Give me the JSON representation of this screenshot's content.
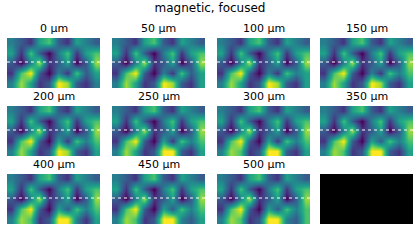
{
  "title": "magnetic, focused",
  "chart_data": [
    {
      "type": "heatmap",
      "title": "0 μm",
      "tick_labels": false,
      "z": [
        [
          0.4,
          0.3,
          0.2,
          0.5,
          0.6,
          0.3,
          0.2,
          0.5,
          0.4,
          0.3
        ],
        [
          0.5,
          0.2,
          0.6,
          0.3,
          0.1,
          0.4,
          0.6,
          0.2,
          0.5,
          0.6
        ],
        [
          0.3,
          0.1,
          0.4,
          0.7,
          0.2,
          0.3,
          0.5,
          0.1,
          0.3,
          0.7
        ],
        [
          0.2,
          0.6,
          0.8,
          0.3,
          0.1,
          0.4,
          0.2,
          0.6,
          0.3,
          0.5
        ],
        [
          0.4,
          0.7,
          0.5,
          0.2,
          0.3,
          0.8,
          0.7,
          0.3,
          0.2,
          0.4
        ]
      ]
    },
    {
      "type": "heatmap",
      "title": "50 μm",
      "tick_labels": false,
      "z": [
        [
          0.4,
          0.3,
          0.2,
          0.5,
          0.6,
          0.3,
          0.2,
          0.5,
          0.4,
          0.3
        ],
        [
          0.5,
          0.2,
          0.6,
          0.3,
          0.1,
          0.4,
          0.6,
          0.2,
          0.5,
          0.6
        ],
        [
          0.3,
          0.1,
          0.4,
          0.7,
          0.2,
          0.3,
          0.5,
          0.1,
          0.3,
          0.7
        ],
        [
          0.2,
          0.6,
          0.8,
          0.3,
          0.1,
          0.4,
          0.2,
          0.6,
          0.3,
          0.5
        ],
        [
          0.4,
          0.7,
          0.5,
          0.2,
          0.3,
          0.8,
          0.7,
          0.3,
          0.2,
          0.5
        ]
      ]
    },
    {
      "type": "heatmap",
      "title": "100 μm",
      "tick_labels": false,
      "z": [
        [
          0.4,
          0.3,
          0.2,
          0.5,
          0.6,
          0.3,
          0.2,
          0.5,
          0.4,
          0.3
        ],
        [
          0.5,
          0.2,
          0.6,
          0.3,
          0.1,
          0.4,
          0.6,
          0.2,
          0.5,
          0.6
        ],
        [
          0.3,
          0.1,
          0.4,
          0.7,
          0.2,
          0.3,
          0.5,
          0.1,
          0.3,
          0.7
        ],
        [
          0.2,
          0.6,
          0.8,
          0.3,
          0.1,
          0.4,
          0.2,
          0.6,
          0.4,
          0.5
        ],
        [
          0.4,
          0.7,
          0.5,
          0.2,
          0.3,
          0.8,
          0.7,
          0.3,
          0.2,
          0.5
        ]
      ]
    },
    {
      "type": "heatmap",
      "title": "150 μm",
      "tick_labels": false,
      "z": [
        [
          0.4,
          0.3,
          0.2,
          0.5,
          0.6,
          0.3,
          0.2,
          0.5,
          0.4,
          0.3
        ],
        [
          0.5,
          0.2,
          0.6,
          0.3,
          0.1,
          0.4,
          0.6,
          0.2,
          0.5,
          0.6
        ],
        [
          0.3,
          0.1,
          0.4,
          0.7,
          0.2,
          0.3,
          0.5,
          0.1,
          0.3,
          0.7
        ],
        [
          0.2,
          0.6,
          0.8,
          0.3,
          0.1,
          0.4,
          0.2,
          0.6,
          0.4,
          0.6
        ],
        [
          0.4,
          0.7,
          0.5,
          0.2,
          0.3,
          0.8,
          0.7,
          0.3,
          0.2,
          0.5
        ]
      ]
    },
    {
      "type": "heatmap",
      "title": "200 μm",
      "tick_labels": false,
      "z": [
        [
          0.4,
          0.3,
          0.2,
          0.5,
          0.6,
          0.3,
          0.2,
          0.5,
          0.4,
          0.3
        ],
        [
          0.5,
          0.2,
          0.6,
          0.3,
          0.1,
          0.4,
          0.6,
          0.2,
          0.5,
          0.6
        ],
        [
          0.3,
          0.1,
          0.4,
          0.7,
          0.2,
          0.3,
          0.5,
          0.1,
          0.3,
          0.7
        ],
        [
          0.2,
          0.6,
          0.8,
          0.3,
          0.1,
          0.5,
          0.2,
          0.6,
          0.4,
          0.6
        ],
        [
          0.4,
          0.7,
          0.5,
          0.2,
          0.3,
          0.8,
          0.7,
          0.3,
          0.2,
          0.5
        ]
      ]
    },
    {
      "type": "heatmap",
      "title": "250 μm",
      "tick_labels": false,
      "z": [
        [
          0.4,
          0.3,
          0.2,
          0.5,
          0.6,
          0.3,
          0.2,
          0.5,
          0.4,
          0.3
        ],
        [
          0.5,
          0.2,
          0.6,
          0.3,
          0.1,
          0.4,
          0.6,
          0.2,
          0.5,
          0.6
        ],
        [
          0.3,
          0.1,
          0.4,
          0.7,
          0.2,
          0.3,
          0.5,
          0.1,
          0.3,
          0.7
        ],
        [
          0.2,
          0.6,
          0.8,
          0.3,
          0.1,
          0.5,
          0.2,
          0.6,
          0.4,
          0.6
        ],
        [
          0.4,
          0.7,
          0.5,
          0.2,
          0.3,
          0.8,
          0.8,
          0.3,
          0.2,
          0.5
        ]
      ]
    },
    {
      "type": "heatmap",
      "title": "300 μm",
      "tick_labels": false,
      "z": [
        [
          0.4,
          0.3,
          0.2,
          0.5,
          0.6,
          0.3,
          0.2,
          0.5,
          0.4,
          0.3
        ],
        [
          0.5,
          0.2,
          0.6,
          0.3,
          0.1,
          0.4,
          0.6,
          0.2,
          0.5,
          0.6
        ],
        [
          0.3,
          0.1,
          0.4,
          0.7,
          0.2,
          0.3,
          0.5,
          0.1,
          0.3,
          0.7
        ],
        [
          0.2,
          0.6,
          0.8,
          0.3,
          0.1,
          0.5,
          0.2,
          0.6,
          0.4,
          0.6
        ],
        [
          0.4,
          0.7,
          0.6,
          0.2,
          0.3,
          0.8,
          0.8,
          0.3,
          0.2,
          0.5
        ]
      ]
    },
    {
      "type": "heatmap",
      "title": "350 μm",
      "tick_labels": false,
      "z": [
        [
          0.4,
          0.3,
          0.2,
          0.5,
          0.6,
          0.3,
          0.2,
          0.5,
          0.4,
          0.3
        ],
        [
          0.5,
          0.2,
          0.6,
          0.3,
          0.1,
          0.4,
          0.6,
          0.2,
          0.5,
          0.6
        ],
        [
          0.3,
          0.1,
          0.4,
          0.7,
          0.2,
          0.3,
          0.5,
          0.1,
          0.3,
          0.7
        ],
        [
          0.2,
          0.6,
          0.8,
          0.3,
          0.1,
          0.5,
          0.3,
          0.6,
          0.4,
          0.6
        ],
        [
          0.4,
          0.7,
          0.6,
          0.2,
          0.3,
          0.8,
          0.8,
          0.3,
          0.2,
          0.5
        ]
      ]
    },
    {
      "type": "heatmap",
      "title": "400 μm",
      "tick_labels": false,
      "z": [
        [
          0.4,
          0.3,
          0.2,
          0.5,
          0.6,
          0.3,
          0.2,
          0.5,
          0.4,
          0.3
        ],
        [
          0.5,
          0.2,
          0.6,
          0.3,
          0.1,
          0.4,
          0.6,
          0.2,
          0.5,
          0.6
        ],
        [
          0.3,
          0.1,
          0.4,
          0.7,
          0.2,
          0.3,
          0.5,
          0.1,
          0.3,
          0.7
        ],
        [
          0.2,
          0.6,
          0.8,
          0.3,
          0.1,
          0.5,
          0.3,
          0.6,
          0.4,
          0.6
        ],
        [
          0.4,
          0.7,
          0.6,
          0.2,
          0.3,
          0.8,
          0.8,
          0.4,
          0.2,
          0.5
        ]
      ]
    },
    {
      "type": "heatmap",
      "title": "450 μm",
      "tick_labels": false,
      "z": [
        [
          0.4,
          0.3,
          0.2,
          0.5,
          0.6,
          0.3,
          0.2,
          0.5,
          0.4,
          0.3
        ],
        [
          0.5,
          0.2,
          0.6,
          0.3,
          0.1,
          0.4,
          0.6,
          0.2,
          0.5,
          0.6
        ],
        [
          0.3,
          0.1,
          0.4,
          0.7,
          0.2,
          0.3,
          0.5,
          0.1,
          0.3,
          0.7
        ],
        [
          0.2,
          0.6,
          0.8,
          0.3,
          0.1,
          0.5,
          0.3,
          0.6,
          0.4,
          0.6
        ],
        [
          0.4,
          0.7,
          0.6,
          0.2,
          0.3,
          0.8,
          0.8,
          0.4,
          0.3,
          0.5
        ]
      ]
    },
    {
      "type": "heatmap",
      "title": "500 μm",
      "tick_labels": false,
      "z": [
        [
          0.4,
          0.3,
          0.2,
          0.5,
          0.6,
          0.3,
          0.2,
          0.5,
          0.4,
          0.3
        ],
        [
          0.5,
          0.2,
          0.6,
          0.3,
          0.1,
          0.4,
          0.6,
          0.2,
          0.5,
          0.6
        ],
        [
          0.3,
          0.1,
          0.4,
          0.7,
          0.2,
          0.3,
          0.5,
          0.1,
          0.3,
          0.7
        ],
        [
          0.2,
          0.6,
          0.8,
          0.3,
          0.1,
          0.5,
          0.3,
          0.6,
          0.4,
          0.6
        ],
        [
          0.4,
          0.7,
          0.6,
          0.2,
          0.3,
          0.8,
          0.8,
          0.4,
          0.3,
          0.6
        ]
      ]
    },
    {
      "type": "blank",
      "color": "#000000"
    }
  ]
}
